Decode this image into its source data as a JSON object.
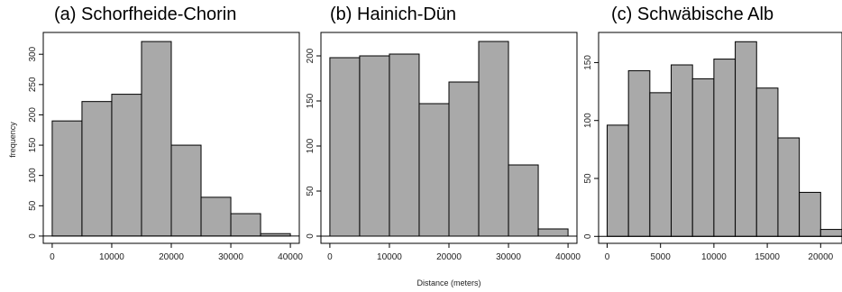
{
  "shared": {
    "ylabel": "frequency",
    "xlabel": "Distance (meters)"
  },
  "chart_data": [
    {
      "type": "bar",
      "title": "(a) Schorfheide-Chorin",
      "bin_edges": [
        0,
        5000,
        10000,
        15000,
        20000,
        25000,
        30000,
        35000,
        40000
      ],
      "values": [
        190,
        222,
        234,
        321,
        150,
        64,
        37,
        4
      ],
      "xlim": [
        -1500,
        41500
      ],
      "ylim": [
        -12,
        336
      ],
      "xticks": [
        0,
        10000,
        20000,
        30000,
        40000
      ],
      "xtick_labels": [
        "0",
        "10000",
        "20000",
        "30000",
        "40000"
      ],
      "yticks": [
        0,
        50,
        100,
        150,
        200,
        250,
        300
      ],
      "ytick_labels": [
        "0",
        "50",
        "100",
        "150",
        "200",
        "250",
        "300"
      ],
      "ylabel": "frequency",
      "xlabel": "",
      "grid": false
    },
    {
      "type": "bar",
      "title": "(b) Hainich-Dün",
      "bin_edges": [
        0,
        5000,
        10000,
        15000,
        20000,
        25000,
        30000,
        35000,
        40000
      ],
      "values": [
        198,
        200,
        202,
        147,
        171,
        216,
        79,
        8
      ],
      "xlim": [
        -1500,
        41500
      ],
      "ylim": [
        -8,
        226
      ],
      "xticks": [
        0,
        10000,
        20000,
        30000,
        40000
      ],
      "xtick_labels": [
        "0",
        "10000",
        "20000",
        "30000",
        "40000"
      ],
      "yticks": [
        0,
        50,
        100,
        150,
        200
      ],
      "ytick_labels": [
        "0",
        "50",
        "100",
        "150",
        "200"
      ],
      "ylabel": "",
      "xlabel": "Distance (meters)",
      "grid": false
    },
    {
      "type": "bar",
      "title": "(c) Schwäbische Alb",
      "bin_edges": [
        0,
        2000,
        4000,
        6000,
        8000,
        10000,
        12000,
        14000,
        16000,
        18000,
        20000,
        22000
      ],
      "values": [
        96,
        143,
        124,
        148,
        136,
        153,
        168,
        128,
        85,
        38,
        6
      ],
      "xlim": [
        -800,
        22000
      ],
      "ylim": [
        -6,
        176
      ],
      "xticks": [
        0,
        5000,
        10000,
        15000,
        20000
      ],
      "xtick_labels": [
        "0",
        "5000",
        "10000",
        "15000",
        "20000"
      ],
      "yticks": [
        0,
        50,
        100,
        150
      ],
      "ytick_labels": [
        "0",
        "50",
        "100",
        "150"
      ],
      "ylabel": "",
      "xlabel": "",
      "grid": false
    }
  ]
}
